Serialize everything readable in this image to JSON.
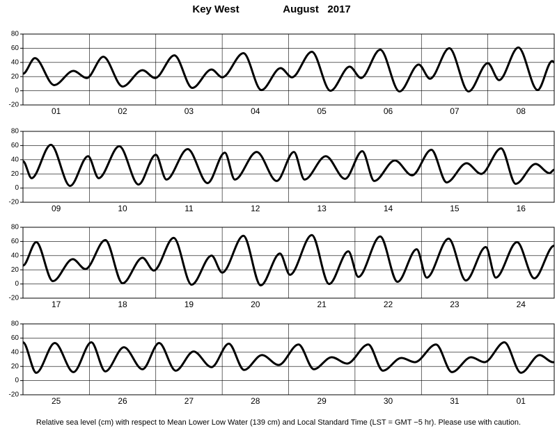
{
  "title_place": "Key West",
  "title_date": "August   2017",
  "footnote": "Relative sea level (cm) with respect to Mean Lower Low Water (139 cm) and Local Standard Time (LST = GMT −5 hr). Please use with caution.",
  "chart_data": [
    {
      "type": "line",
      "color": "#000000",
      "xlim": [
        1,
        9
      ],
      "ylim": [
        -20,
        80
      ],
      "yticks": [
        -20,
        0,
        20,
        40,
        60,
        80
      ],
      "grid": true,
      "day_labels": [
        "01",
        "02",
        "03",
        "04",
        "05",
        "06",
        "07",
        "08"
      ],
      "x": [
        1.0,
        1.18,
        1.47,
        1.76,
        1.96,
        2.21,
        2.5,
        2.8,
        2.99,
        3.28,
        3.55,
        3.84,
        4.0,
        4.32,
        4.59,
        4.88,
        5.05,
        5.35,
        5.63,
        5.92,
        6.09,
        6.38,
        6.67,
        6.96,
        7.13,
        7.42,
        7.71,
        8.0,
        8.17,
        8.46,
        8.75,
        8.97,
        9.0
      ],
      "values": [
        24,
        46,
        8,
        28,
        18,
        48,
        6,
        29,
        18,
        50,
        4,
        30,
        19,
        53,
        1,
        32,
        19,
        55,
        0,
        34,
        18,
        58,
        -1,
        37,
        17,
        60,
        -1,
        39,
        15,
        61,
        1,
        42,
        40
      ]
    },
    {
      "type": "line",
      "color": "#000000",
      "xlim": [
        9,
        17
      ],
      "ylim": [
        -20,
        80
      ],
      "yticks": [
        -20,
        0,
        20,
        40,
        60,
        80
      ],
      "grid": true,
      "day_labels": [
        "09",
        "10",
        "11",
        "12",
        "13",
        "14",
        "15",
        "16"
      ],
      "x": [
        9.0,
        9.13,
        9.42,
        9.71,
        9.98,
        10.14,
        10.45,
        10.74,
        11.0,
        11.16,
        11.48,
        11.78,
        12.04,
        12.19,
        12.52,
        12.82,
        13.08,
        13.24,
        13.56,
        13.85,
        14.11,
        14.29,
        14.6,
        14.86,
        15.15,
        15.38,
        15.68,
        15.9,
        16.2,
        16.42,
        16.72,
        16.93,
        17.0
      ],
      "values": [
        38,
        14,
        61,
        3,
        45,
        14,
        59,
        5,
        47,
        12,
        55,
        7,
        50,
        12,
        51,
        10,
        51,
        12,
        45,
        13,
        52,
        10,
        39,
        18,
        54,
        8,
        35,
        20,
        56,
        6,
        34,
        21,
        26
      ]
    },
    {
      "type": "line",
      "color": "#000000",
      "xlim": [
        17,
        25
      ],
      "ylim": [
        -20,
        80
      ],
      "yticks": [
        -20,
        0,
        20,
        40,
        60,
        80
      ],
      "grid": true,
      "day_labels": [
        "17",
        "18",
        "19",
        "20",
        "21",
        "22",
        "23",
        "24"
      ],
      "x": [
        17.0,
        17.2,
        17.45,
        17.75,
        17.94,
        18.24,
        18.5,
        18.8,
        18.97,
        19.27,
        19.54,
        19.84,
        20.0,
        20.32,
        20.58,
        20.87,
        21.02,
        21.35,
        21.61,
        21.9,
        22.05,
        22.38,
        22.64,
        22.93,
        23.08,
        23.41,
        23.67,
        23.97,
        24.12,
        24.44,
        24.7,
        25.0
      ],
      "values": [
        26,
        59,
        4,
        35,
        21,
        62,
        1,
        37,
        19,
        65,
        -1,
        40,
        16,
        68,
        -2,
        43,
        13,
        69,
        0,
        46,
        10,
        67,
        3,
        49,
        9,
        64,
        5,
        52,
        9,
        59,
        8,
        54
      ]
    },
    {
      "type": "line",
      "color": "#000000",
      "xlim": [
        25,
        33
      ],
      "ylim": [
        -20,
        80
      ],
      "yticks": [
        -20,
        0,
        20,
        40,
        60,
        80
      ],
      "grid": true,
      "day_labels": [
        "25",
        "26",
        "27",
        "28",
        "29",
        "30",
        "31",
        "01"
      ],
      "x": [
        25.0,
        25.2,
        25.48,
        25.76,
        26.03,
        26.24,
        26.52,
        26.8,
        27.05,
        27.3,
        27.57,
        27.84,
        28.1,
        28.33,
        28.6,
        28.85,
        29.15,
        29.38,
        29.65,
        29.88,
        30.2,
        30.42,
        30.7,
        30.9,
        31.22,
        31.46,
        31.75,
        31.95,
        32.25,
        32.5,
        32.78,
        32.98,
        33.0
      ],
      "values": [
        54,
        11,
        53,
        12,
        54,
        13,
        47,
        16,
        53,
        14,
        41,
        19,
        52,
        15,
        36,
        22,
        51,
        16,
        33,
        24,
        51,
        14,
        32,
        26,
        51,
        12,
        33,
        26,
        54,
        11,
        36,
        26,
        26
      ]
    }
  ]
}
